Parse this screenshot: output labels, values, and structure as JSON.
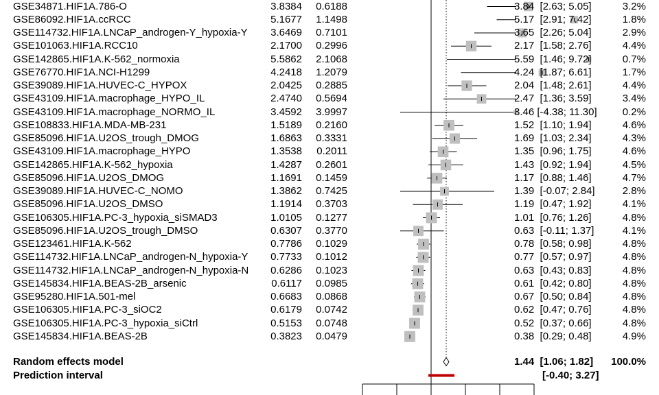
{
  "chart_data": {
    "type": "forest",
    "title": "",
    "xlabel": "",
    "ylabel": "",
    "x_axis_range": [
      -1,
      4
    ],
    "x_axis_ticks": [
      -1,
      0,
      1,
      2,
      3,
      4
    ],
    "reference_line": 1,
    "studies": [
      {
        "label": "GSE34871.HIF1A.786-O",
        "te": "3.8384",
        "se": "0.6188",
        "est": 3.84,
        "lower": 2.63,
        "upper": 5.05,
        "ci_text": "3.84  [2.63; 5.05]",
        "weight": "3.2%"
      },
      {
        "label": "GSE86092.HIF1A.ccRCC",
        "te": "5.1677",
        "se": "1.1498",
        "est": 5.17,
        "lower": 2.91,
        "upper": 7.42,
        "ci_text": "5.17  [2.91; 7.42]",
        "weight": "1.8%"
      },
      {
        "label": "GSE114732.HIF1A.LNCaP_androgen-Y_hypoxia-Y",
        "te": "3.6469",
        "se": "0.7101",
        "est": 3.65,
        "lower": 2.26,
        "upper": 5.04,
        "ci_text": "3.65  [2.26; 5.04]",
        "weight": "2.9%"
      },
      {
        "label": "GSE101063.HIF1A.RCC10",
        "te": "2.1700",
        "se": "0.2996",
        "est": 2.17,
        "lower": 1.58,
        "upper": 2.76,
        "ci_text": "2.17  [1.58; 2.76]",
        "weight": "4.4%"
      },
      {
        "label": "GSE142865.HIF1A.K-562_normoxia",
        "te": "5.5862",
        "se": "2.1068",
        "est": 5.59,
        "lower": 1.46,
        "upper": 9.72,
        "ci_text": "5.59  [1.46; 9.72]",
        "weight": "0.7%"
      },
      {
        "label": "GSE76770.HIF1A.NCI-H1299",
        "te": "4.2418",
        "se": "1.2079",
        "est": 4.24,
        "lower": 1.87,
        "upper": 6.61,
        "ci_text": "4.24  [1.87; 6.61]",
        "weight": "1.7%"
      },
      {
        "label": "GSE39089.HIF1A.HUVEC-C_HYPOX",
        "te": "2.0425",
        "se": "0.2885",
        "est": 2.04,
        "lower": 1.48,
        "upper": 2.61,
        "ci_text": "2.04  [1.48; 2.61]",
        "weight": "4.4%"
      },
      {
        "label": "GSE43109.HIF1A.macrophage_HYPO_IL",
        "te": "2.4740",
        "se": "0.5694",
        "est": 2.47,
        "lower": 1.36,
        "upper": 3.59,
        "ci_text": "2.47  [1.36; 3.59]",
        "weight": "3.4%"
      },
      {
        "label": "GSE43109.HIF1A.macrophage_NORMO_IL",
        "te": "3.4592",
        "se": "3.9997",
        "est": 3.46,
        "lower": -4.38,
        "upper": 11.3,
        "ci_text": "3.46 [-4.38; 11.30]",
        "weight": "0.2%"
      },
      {
        "label": "GSE108833.HIF1A.MDA-MB-231",
        "te": "1.5189",
        "se": "0.2160",
        "est": 1.52,
        "lower": 1.1,
        "upper": 1.94,
        "ci_text": "1.52  [1.10; 1.94]",
        "weight": "4.6%"
      },
      {
        "label": "GSE85096.HIF1A.U2OS_trough_DMOG",
        "te": "1.6863",
        "se": "0.3331",
        "est": 1.69,
        "lower": 1.03,
        "upper": 2.34,
        "ci_text": "1.69  [1.03; 2.34]",
        "weight": "4.3%"
      },
      {
        "label": "GSE43109.HIF1A.macrophage_HYPO",
        "te": "1.3538",
        "se": "0.2011",
        "est": 1.35,
        "lower": 0.96,
        "upper": 1.75,
        "ci_text": "1.35  [0.96; 1.75]",
        "weight": "4.6%"
      },
      {
        "label": "GSE142865.HIF1A.K-562_hypoxia",
        "te": "1.4287",
        "se": "0.2601",
        "est": 1.43,
        "lower": 0.92,
        "upper": 1.94,
        "ci_text": "1.43  [0.92; 1.94]",
        "weight": "4.5%"
      },
      {
        "label": "GSE85096.HIF1A.U2OS_DMOG",
        "te": "1.1691",
        "se": "0.1459",
        "est": 1.17,
        "lower": 0.88,
        "upper": 1.46,
        "ci_text": "1.17  [0.88; 1.46]",
        "weight": "4.7%"
      },
      {
        "label": "GSE39089.HIF1A.HUVEC-C_NOMO",
        "te": "1.3862",
        "se": "0.7425",
        "est": 1.39,
        "lower": -0.07,
        "upper": 2.84,
        "ci_text": "1.39  [-0.07; 2.84]",
        "weight": "2.8%"
      },
      {
        "label": "GSE85096.HIF1A.U2OS_DMSO",
        "te": "1.1914",
        "se": "0.3703",
        "est": 1.19,
        "lower": 0.47,
        "upper": 1.92,
        "ci_text": "1.19  [0.47; 1.92]",
        "weight": "4.1%"
      },
      {
        "label": "GSE106305.HIF1A.PC-3_hypoxia_siSMAD3",
        "te": "1.0105",
        "se": "0.1277",
        "est": 1.01,
        "lower": 0.76,
        "upper": 1.26,
        "ci_text": "1.01  [0.76; 1.26]",
        "weight": "4.8%"
      },
      {
        "label": "GSE85096.HIF1A.U2OS_trough_DMSO",
        "te": "0.6307",
        "se": "0.3770",
        "est": 0.63,
        "lower": -0.11,
        "upper": 1.37,
        "ci_text": "0.63  [-0.11; 1.37]",
        "weight": "4.1%"
      },
      {
        "label": "GSE123461.HIF1A.K-562",
        "te": "0.7786",
        "se": "0.1029",
        "est": 0.78,
        "lower": 0.58,
        "upper": 0.98,
        "ci_text": "0.78  [0.58; 0.98]",
        "weight": "4.8%"
      },
      {
        "label": "GSE114732.HIF1A.LNCaP_androgen-N_hypoxia-Y",
        "te": "0.7733",
        "se": "0.1012",
        "est": 0.77,
        "lower": 0.57,
        "upper": 0.97,
        "ci_text": "0.77  [0.57; 0.97]",
        "weight": "4.8%"
      },
      {
        "label": "GSE114732.HIF1A.LNCaP_androgen-N_hypoxia-N",
        "te": "0.6286",
        "se": "0.1023",
        "est": 0.63,
        "lower": 0.43,
        "upper": 0.83,
        "ci_text": "0.63  [0.43; 0.83]",
        "weight": "4.8%"
      },
      {
        "label": "GSE145834.HIF1A.BEAS-2B_arsenic",
        "te": "0.6117",
        "se": "0.0985",
        "est": 0.61,
        "lower": 0.42,
        "upper": 0.8,
        "ci_text": "0.61  [0.42; 0.80]",
        "weight": "4.8%"
      },
      {
        "label": "GSE95280.HIF1A.501-mel",
        "te": "0.6683",
        "se": "0.0868",
        "est": 0.67,
        "lower": 0.5,
        "upper": 0.84,
        "ci_text": "0.67  [0.50; 0.84]",
        "weight": "4.8%"
      },
      {
        "label": "GSE106305.HIF1A.PC-3_siOC2",
        "te": "0.6179",
        "se": "0.0742",
        "est": 0.62,
        "lower": 0.47,
        "upper": 0.76,
        "ci_text": "0.62  [0.47; 0.76]",
        "weight": "4.8%"
      },
      {
        "label": "GSE106305.HIF1A.PC-3_hypoxia_siCtrl",
        "te": "0.5153",
        "se": "0.0748",
        "est": 0.52,
        "lower": 0.37,
        "upper": 0.66,
        "ci_text": "0.52  [0.37; 0.66]",
        "weight": "4.8%"
      },
      {
        "label": "GSE145834.HIF1A.BEAS-2B",
        "te": "0.3823",
        "se": "0.0479",
        "est": 0.38,
        "lower": 0.29,
        "upper": 0.48,
        "ci_text": "0.38  [0.29; 0.48]",
        "weight": "4.9%"
      }
    ],
    "random_effects": {
      "label": "Random effects model",
      "est": 1.44,
      "lower": 1.06,
      "upper": 1.82,
      "ci_text": "1.44  [1.06; 1.82]",
      "weight": "100.0%"
    },
    "prediction_interval": {
      "label": "Prediction interval",
      "lower": -0.4,
      "upper": 3.27,
      "ci_text": "[-0.40; 3.27]"
    },
    "colors": {
      "square": "#bfbfbf",
      "line": "#000000",
      "diamond": "#ffffff",
      "prediction": "#c00000",
      "dotted": "#000000"
    }
  }
}
